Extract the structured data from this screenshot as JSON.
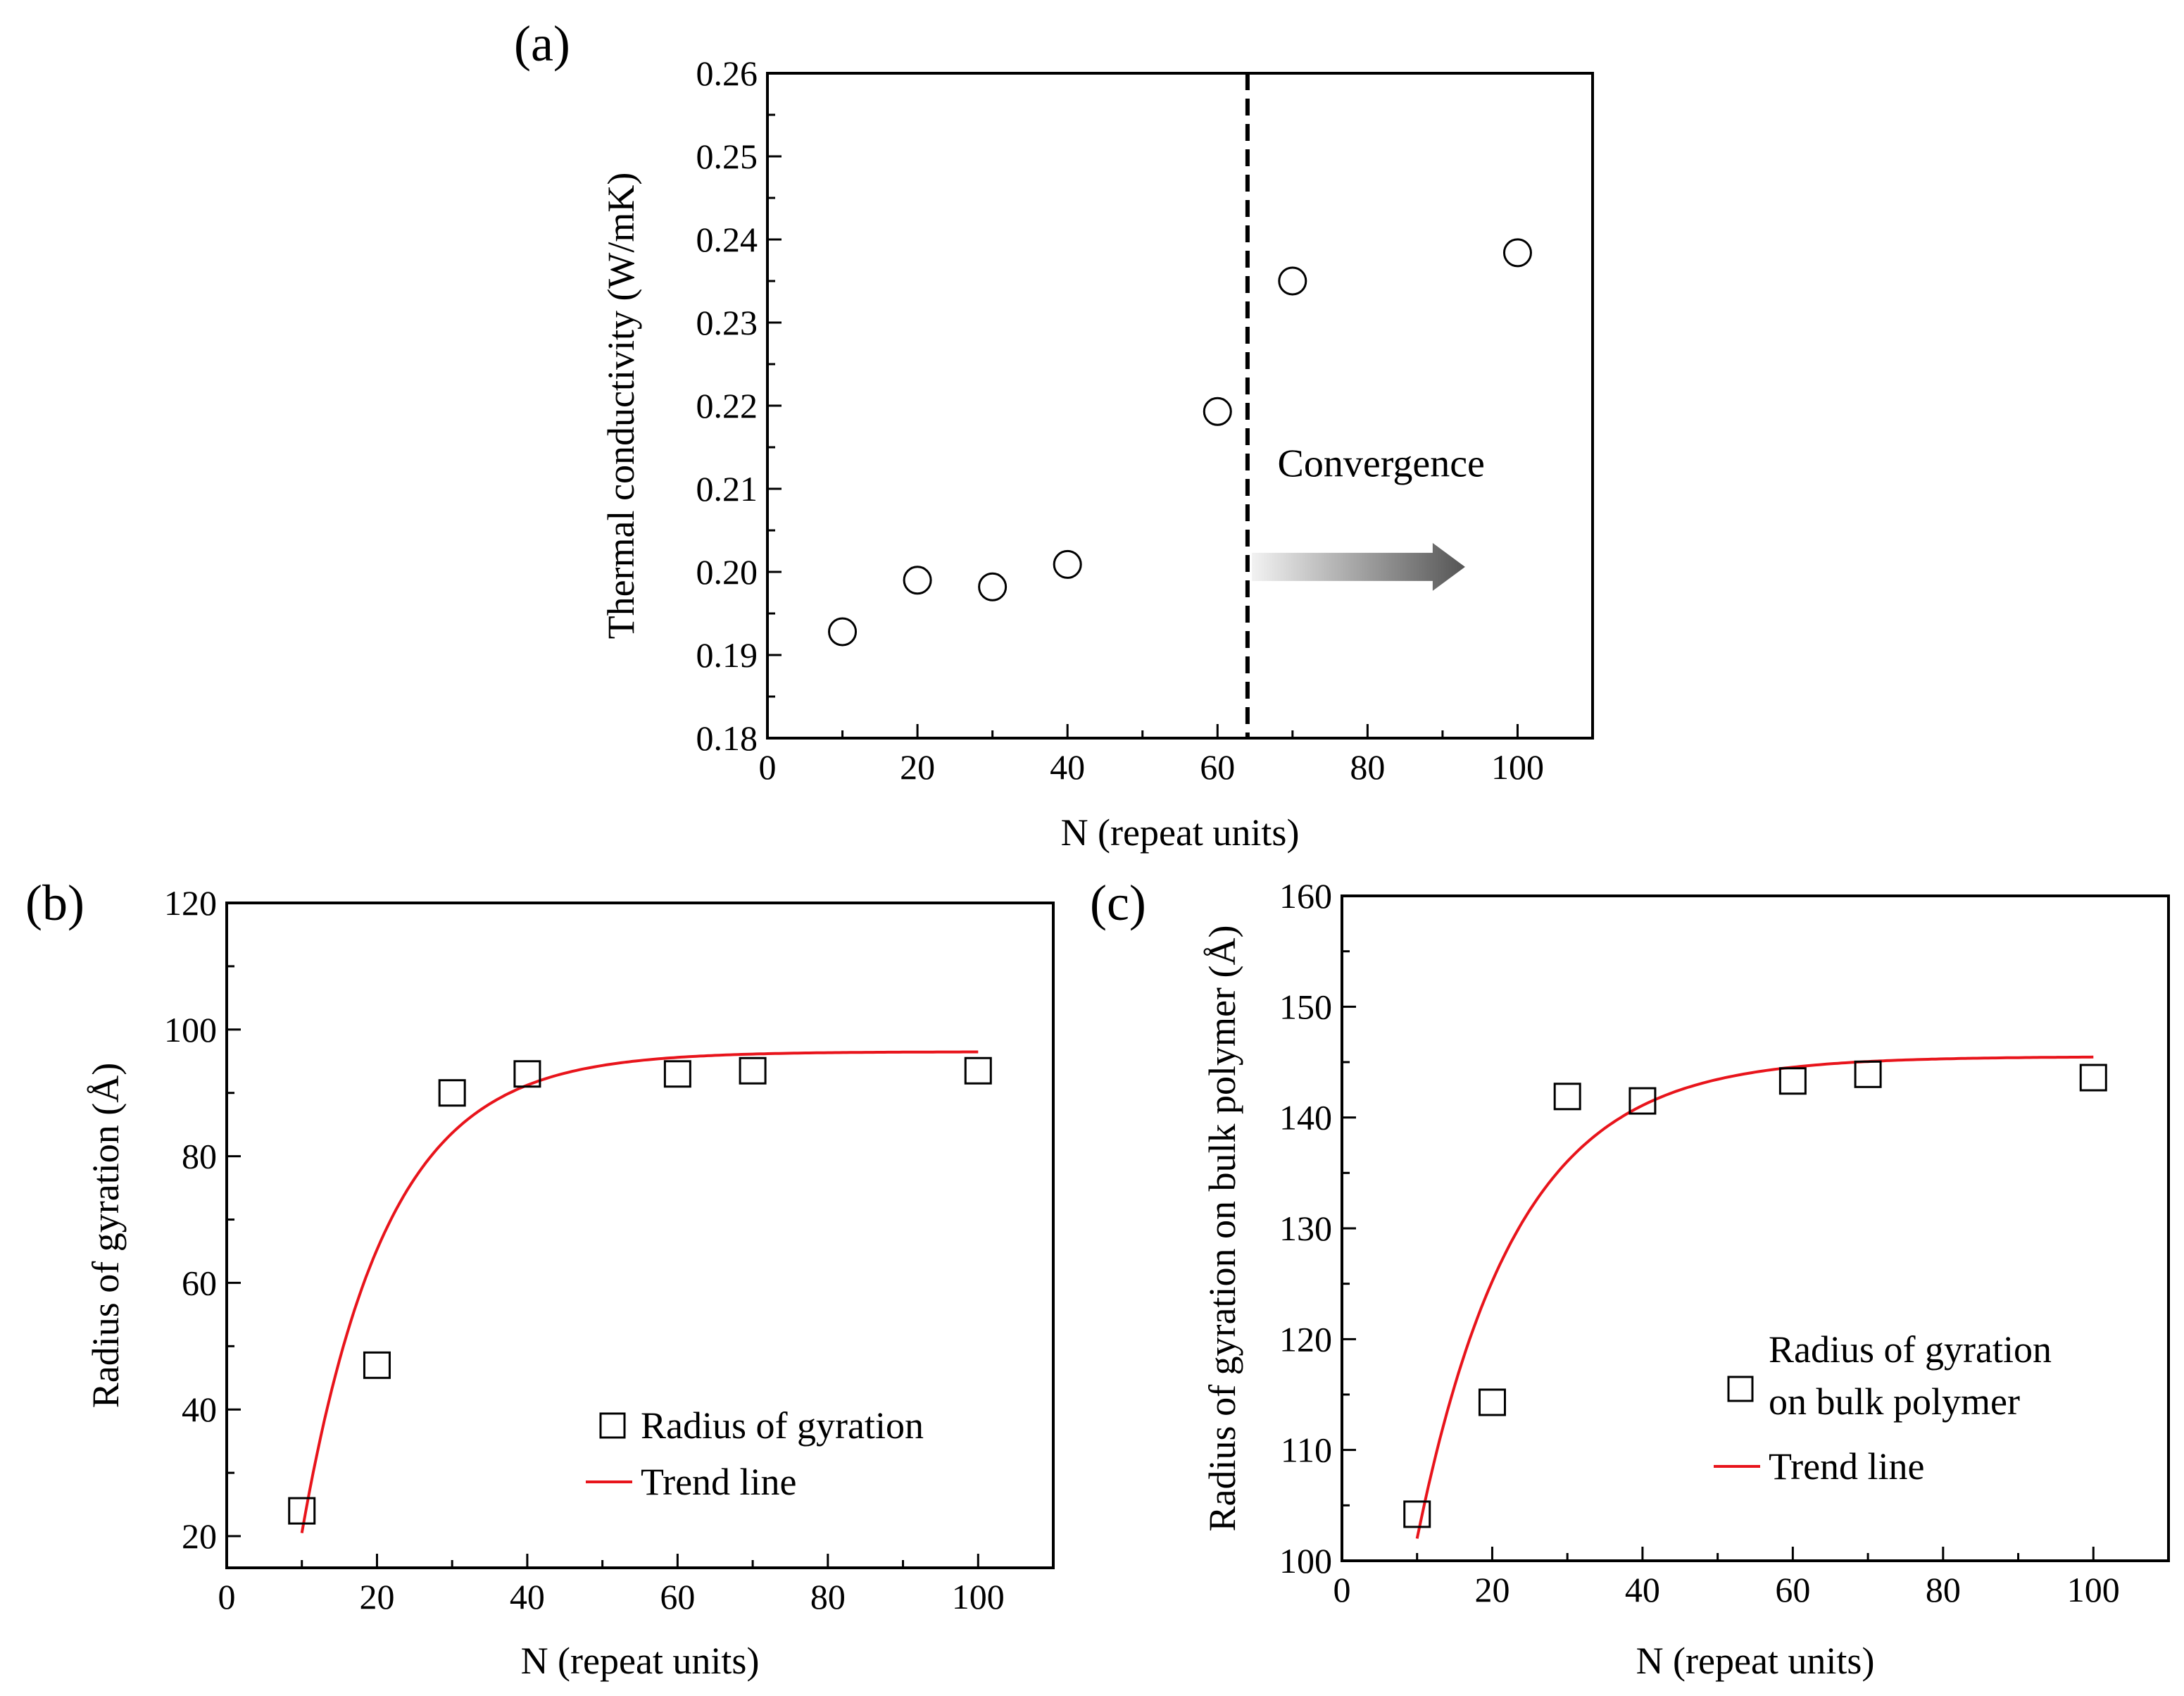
{
  "chart_data": [
    {
      "type": "scatter",
      "panel_label": "(a)",
      "xlabel": "N (repeat units)",
      "ylabel": "Thermal conductivity (W/mK)",
      "xlim": [
        0,
        110
      ],
      "ylim": [
        0.18,
        0.26
      ],
      "xticks": [
        "0",
        "20",
        "40",
        "60",
        "80",
        "100"
      ],
      "yticks": [
        "0.18",
        "0.19",
        "0.20",
        "0.21",
        "0.22",
        "0.23",
        "0.24",
        "0.25",
        "0.26"
      ],
      "series": [
        {
          "name": "Thermal conductivity",
          "marker": "circle",
          "x": [
            10,
            20,
            30,
            40,
            60,
            70,
            100
          ],
          "y": [
            0.1928,
            0.199,
            0.1982,
            0.2009,
            0.2193,
            0.235,
            0.2384
          ]
        }
      ],
      "vline": {
        "x": 64,
        "style": "dashed"
      },
      "annotation": {
        "text": "Convergence",
        "arrow_from": 64,
        "arrow_to": 93,
        "arrow_y": 0.2006,
        "text_x": 68,
        "text_y": 0.2115
      }
    },
    {
      "type": "scatter",
      "panel_label": "(b)",
      "xlabel": "N (repeat units)",
      "ylabel": "Radius of gyration (Å)",
      "xlim": [
        0,
        110
      ],
      "ylim": [
        15,
        120
      ],
      "xticks": [
        "0",
        "20",
        "40",
        "60",
        "80",
        "100"
      ],
      "yticks": [
        "20",
        "40",
        "60",
        "80",
        "100",
        "120"
      ],
      "series": [
        {
          "name": "Radius of gyration",
          "marker": "square",
          "x": [
            10,
            20,
            30,
            40,
            60,
            70,
            100
          ],
          "y": [
            24,
            47,
            90,
            93,
            93,
            93.5,
            93.5
          ]
        }
      ],
      "trend": {
        "name": "Trend line",
        "color": "#e8141b",
        "model": "exp_saturation",
        "a": 96.5,
        "b": 76,
        "k": 0.0889,
        "x0": 10,
        "x_start": 10,
        "x_end": 100
      },
      "legend": {
        "position": "bottom-right",
        "entries": [
          "Radius of gyration",
          "Trend line"
        ]
      }
    },
    {
      "type": "scatter",
      "panel_label": "(c)",
      "xlabel": "N (repeat units)",
      "ylabel": "Radius of gyration on bulk polymer (Å)",
      "xlim": [
        0,
        110
      ],
      "ylim": [
        100,
        160
      ],
      "xticks": [
        "0",
        "20",
        "40",
        "60",
        "80",
        "100"
      ],
      "yticks": [
        "100",
        "110",
        "120",
        "130",
        "140",
        "150",
        "160"
      ],
      "series": [
        {
          "name": "Radius of gyration on bulk polymer",
          "marker": "square",
          "x": [
            10,
            20,
            30,
            40,
            60,
            70,
            100
          ],
          "y": [
            104.2,
            114.3,
            141.9,
            141.5,
            143.3,
            143.9,
            143.6
          ]
        }
      ],
      "trend": {
        "name": "Trend line",
        "color": "#e8141b",
        "model": "exp_saturation",
        "a": 145.5,
        "b": 43.5,
        "k": 0.0763,
        "x0": 10,
        "x_start": 10,
        "x_end": 100
      },
      "legend": {
        "position": "bottom-right",
        "entries": [
          "Radius of gyration",
          "on bulk polymer",
          "Trend line"
        ]
      }
    }
  ]
}
